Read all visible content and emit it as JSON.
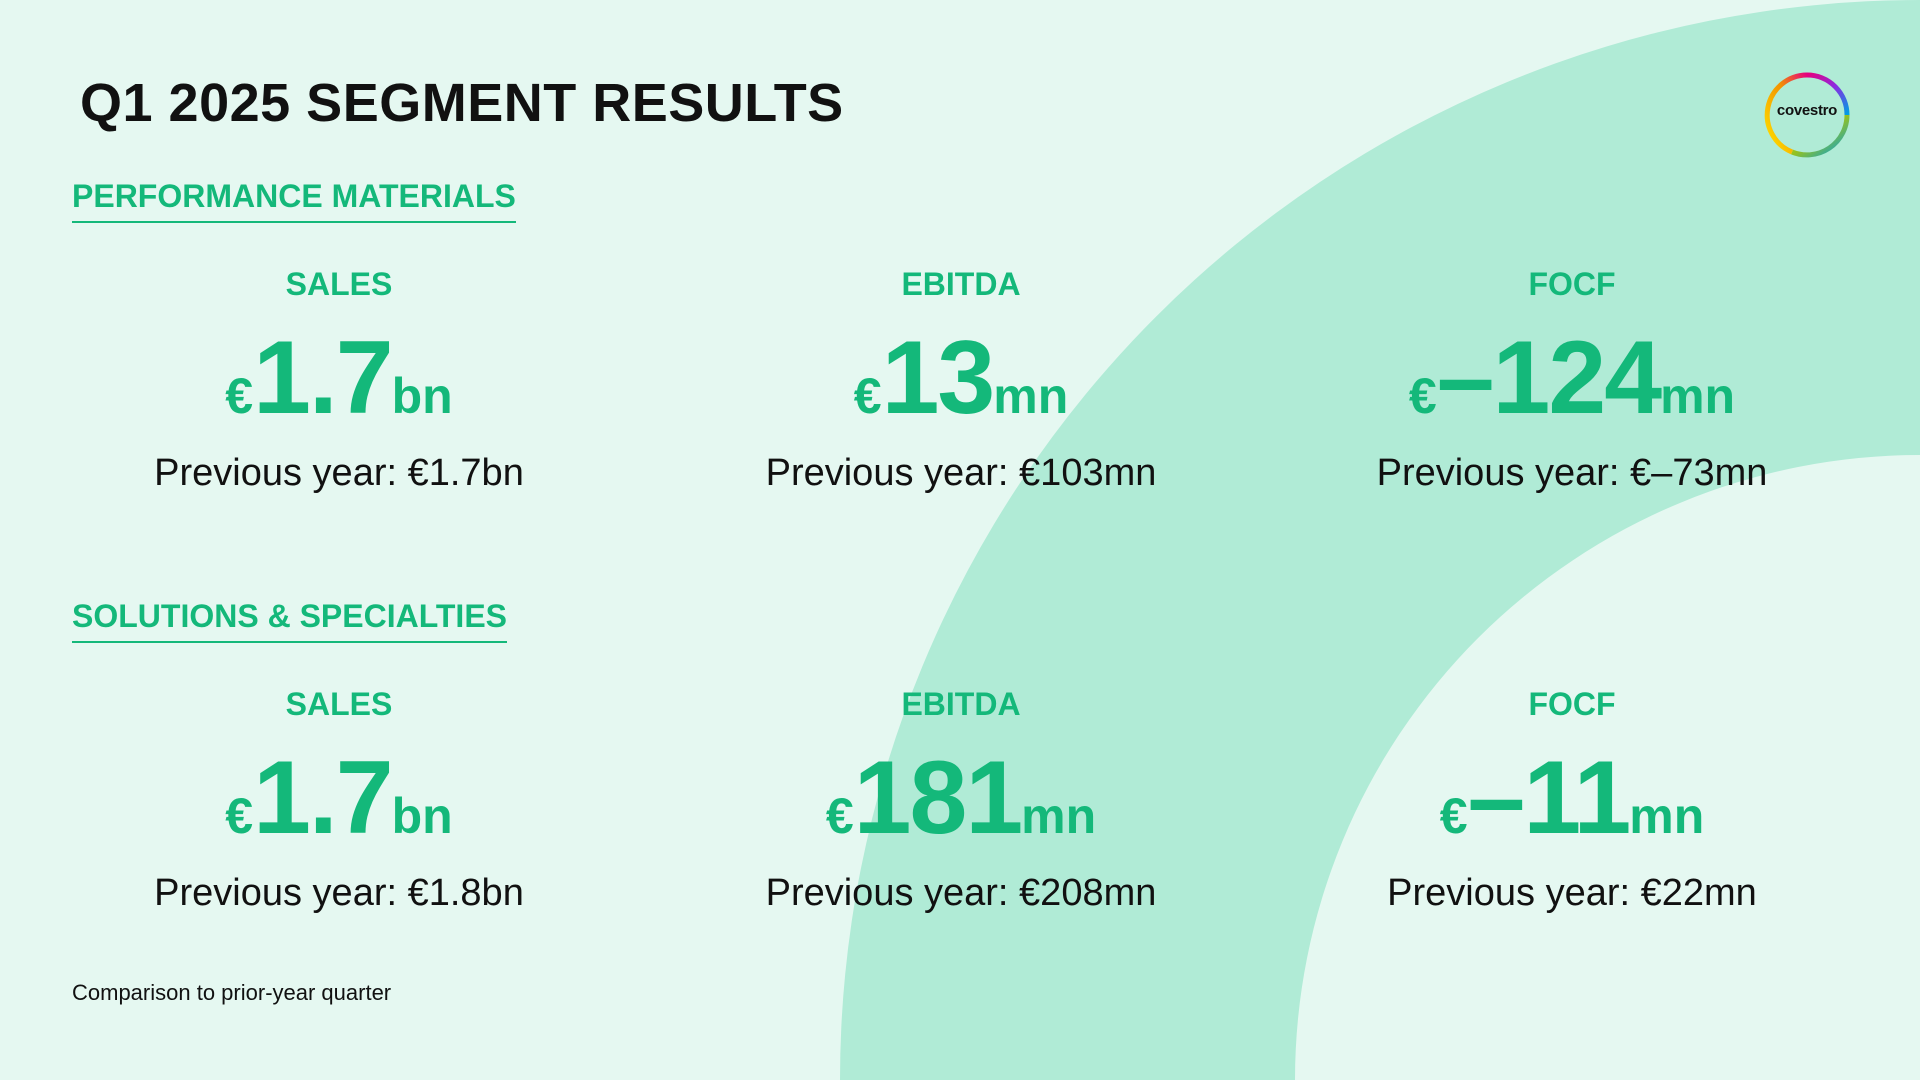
{
  "title": "Q1 2025 SEGMENT RESULTS",
  "logo": {
    "text": "covestro",
    "ring_colors": [
      "#e6007e",
      "#f39200",
      "#ffe600",
      "#95c11f",
      "#009fe3",
      "#8a2be2"
    ]
  },
  "colors": {
    "accent": "#14b87a",
    "background": "#e5f8f1",
    "arc": "#b0ebd6",
    "text": "#111111"
  },
  "sections": [
    {
      "heading": "PERFORMANCE MATERIALS",
      "metrics": [
        {
          "label": "SALES",
          "currency": "€",
          "value": "1.7",
          "unit": "bn",
          "previous": "Previous year: €1.7bn"
        },
        {
          "label": "EBITDA",
          "currency": "€",
          "value": "13",
          "unit": "mn",
          "previous": "Previous year: €103mn"
        },
        {
          "label": "FOCF",
          "currency": "€",
          "value": "–124",
          "unit": "mn",
          "previous": "Previous year: €–73mn"
        }
      ]
    },
    {
      "heading": "SOLUTIONS & SPECIALTIES",
      "metrics": [
        {
          "label": "SALES",
          "currency": "€",
          "value": "1.7",
          "unit": "bn",
          "previous": "Previous year: €1.8bn"
        },
        {
          "label": "EBITDA",
          "currency": "€",
          "value": "181",
          "unit": "mn",
          "previous": "Previous year: €208mn"
        },
        {
          "label": "FOCF",
          "currency": "€",
          "value": "–11",
          "unit": "mn",
          "previous": "Previous year: €22mn"
        }
      ]
    }
  ],
  "footnote": "Comparison to prior-year quarter"
}
